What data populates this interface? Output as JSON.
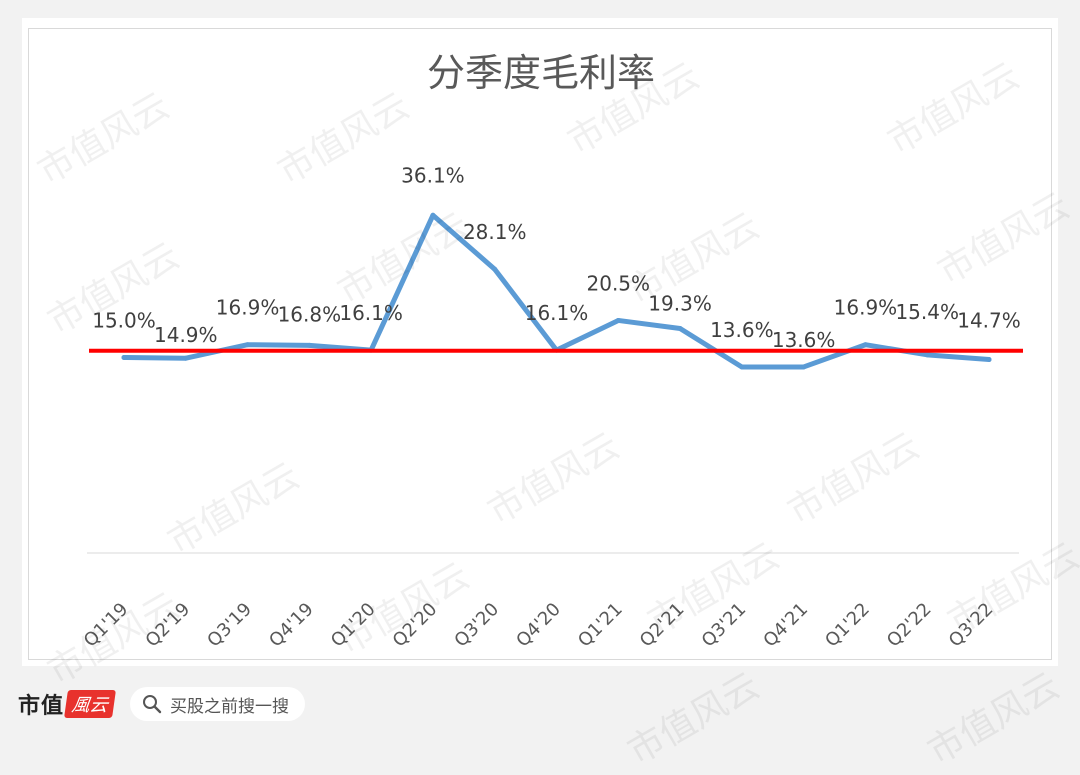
{
  "chart_data": {
    "type": "line",
    "title": "分季度毛利率",
    "categories": [
      "Q1'19",
      "Q2'19",
      "Q3'19",
      "Q4'19",
      "Q1'20",
      "Q2'20",
      "Q3'20",
      "Q4'20",
      "Q1'21",
      "Q2'21",
      "Q3'21",
      "Q4'21",
      "Q1'22",
      "Q2'22",
      "Q3'22"
    ],
    "series": [
      {
        "values": [
          15.0,
          14.9,
          16.9,
          16.8,
          16.1,
          36.1,
          28.1,
          16.1,
          20.5,
          19.3,
          13.6,
          13.6,
          16.9,
          15.4,
          14.7
        ],
        "data_labels": [
          "15.0%",
          "14.9%",
          "16.9%",
          "16.8%",
          "16.1%",
          "36.1%",
          "28.1%",
          "16.1%",
          "20.5%",
          "19.3%",
          "13.6%",
          "13.6%",
          "16.9%",
          "15.4%",
          "14.7%"
        ],
        "color": "#5b9bd5"
      }
    ],
    "reference_line": {
      "value": 16.0,
      "color": "#ff0000"
    },
    "ylim": [
      -14,
      40
    ],
    "grid": false,
    "legend": "none"
  },
  "footer": {
    "brand": "市值",
    "brand_mark": "風云",
    "search_placeholder": "买股之前搜一搜"
  },
  "watermark_text": "市值风云"
}
